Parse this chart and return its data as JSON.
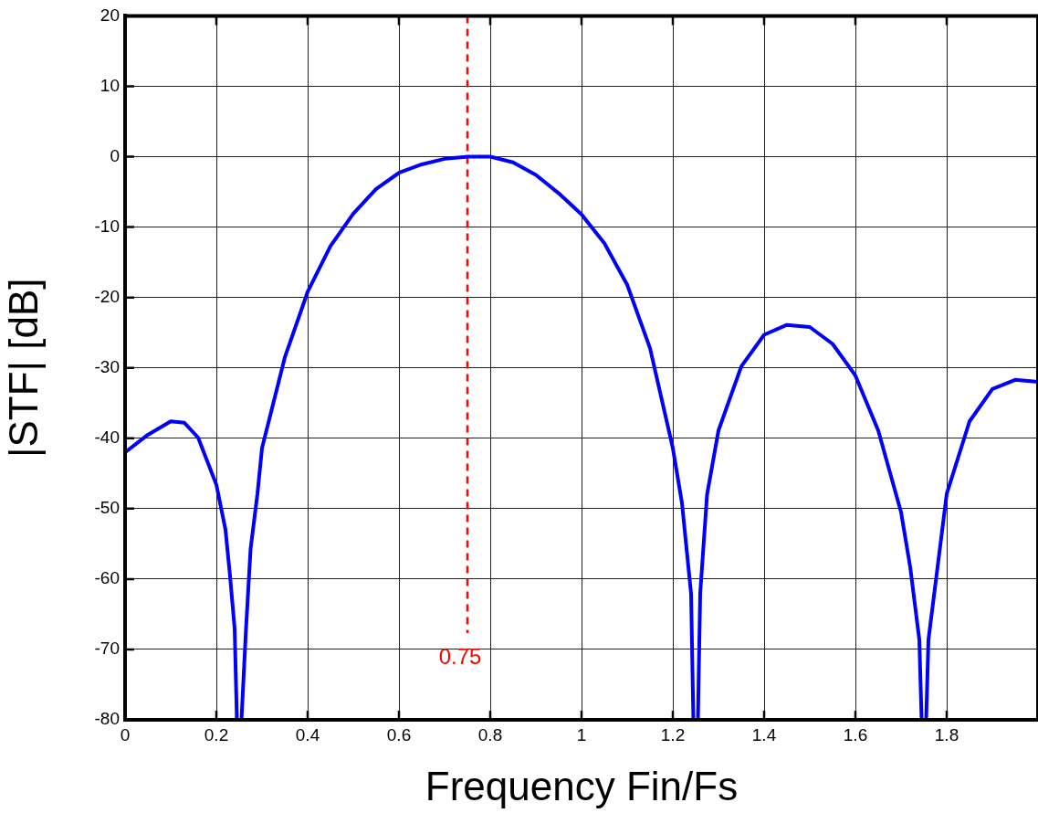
{
  "chart_data": {
    "type": "line",
    "xlabel": "Frequency Fin/Fs",
    "ylabel": "|STF| [dB]",
    "xlim": [
      0,
      2
    ],
    "xticks": [
      0,
      0.2,
      0.4,
      0.6,
      0.8,
      1,
      1.2,
      1.4,
      1.6,
      1.8
    ],
    "ylim": [
      -80,
      20
    ],
    "yticks": [
      -80,
      -70,
      -60,
      -50,
      -40,
      -30,
      -20,
      -10,
      0,
      10,
      20
    ],
    "grid": true,
    "legend": false,
    "marker": "none",
    "line_style": "solid",
    "series": [
      {
        "color": "#0000ff",
        "x": [
          0,
          0.05,
          0.1,
          0.13,
          0.16,
          0.2,
          0.22,
          0.23,
          0.24,
          0.245,
          0.255,
          0.265,
          0.275,
          0.29,
          0.3,
          0.35,
          0.4,
          0.45,
          0.5,
          0.55,
          0.6,
          0.65,
          0.7,
          0.75,
          0.8,
          0.85,
          0.9,
          0.95,
          1,
          1.05,
          1.1,
          1.15,
          1.2,
          1.22,
          1.24,
          1.245,
          1.255,
          1.26,
          1.275,
          1.3,
          1.35,
          1.4,
          1.45,
          1.5,
          1.55,
          1.6,
          1.65,
          1.7,
          1.72,
          1.74,
          1.745,
          1.755,
          1.76,
          1.78,
          1.8,
          1.85,
          1.9,
          1.95,
          2
        ],
        "values": [
          -42,
          -39.5,
          -37.6,
          -37.8,
          -39.9,
          -46.6,
          -53,
          -59.6,
          -67,
          -80,
          -80,
          -67,
          -55.7,
          -47.9,
          -41.4,
          -28.5,
          -19.2,
          -12.7,
          -8.1,
          -4.6,
          -2.3,
          -1.1,
          -0.3,
          0,
          0,
          -0.8,
          -2.6,
          -5.2,
          -8.2,
          -12.3,
          -18.2,
          -27.2,
          -41.4,
          -49.2,
          -62.1,
          -80,
          -80,
          -62,
          -48,
          -38.9,
          -29.8,
          -25.3,
          -23.9,
          -24.2,
          -26.6,
          -31.1,
          -38.9,
          -50.5,
          -58.3,
          -68.6,
          -80,
          -80,
          -68.6,
          -58.3,
          -47.9,
          -37.6,
          -33,
          -31.7,
          -32
        ]
      }
    ],
    "ref_lines": [
      {
        "axis": "x",
        "value": 0.75,
        "label": "0.75",
        "color": "#ff0000",
        "line_style": "dashed"
      }
    ]
  }
}
